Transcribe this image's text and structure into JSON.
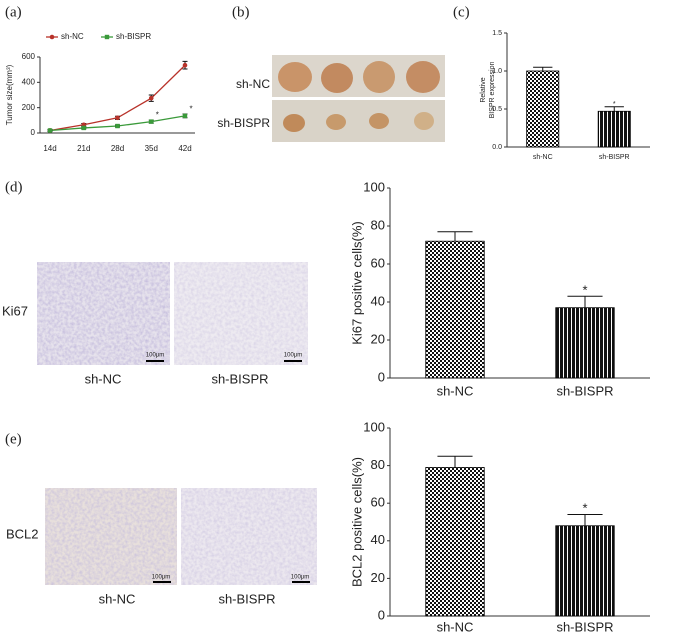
{
  "panel_labels": [
    "(a)",
    "(b)",
    "(c)",
    "(d)",
    "(e)"
  ],
  "photo_b": {
    "rows": [
      "sh-NC",
      "sh-BISPR"
    ]
  },
  "photo_d": {
    "row": "Ki67",
    "columns": [
      "sh-NC",
      "sh-BISPR"
    ],
    "scale_bars": [
      "100μm",
      "100μm"
    ]
  },
  "photo_e": {
    "row": "BCL2",
    "columns": [
      "sh-NC",
      "sh-BISPR"
    ],
    "scale_bars": [
      "100μm",
      "100μm"
    ]
  },
  "chart_data": [
    {
      "type": "line",
      "ylabel": "Tumor size(mm³)",
      "categories": [
        "14d",
        "21d",
        "28d",
        "35d",
        "42d"
      ],
      "series": [
        {
          "name": "sh-NC",
          "color": "#b8322a",
          "values": [
            20,
            65,
            120,
            275,
            535
          ],
          "errors": [
            8,
            10,
            12,
            25,
            30
          ]
        },
        {
          "name": "sh-BISPR",
          "color": "#3a9a3a",
          "values": [
            20,
            40,
            55,
            90,
            135
          ],
          "errors": [
            6,
            8,
            8,
            12,
            15
          ],
          "significance": [
            null,
            null,
            null,
            "*",
            "*"
          ]
        }
      ],
      "ylim": [
        0,
        600
      ],
      "yticks": [
        0,
        200,
        400,
        600
      ],
      "legend": "top"
    },
    {
      "type": "bar",
      "ylabel": [
        "Relative",
        "BISPR expression"
      ],
      "categories": [
        "sh-NC",
        "sh-BISPR"
      ],
      "series": [
        {
          "color": "#000000",
          "values": [
            1.0,
            0.47
          ],
          "errors": [
            0.05,
            0.06
          ],
          "significance": [
            null,
            "*"
          ]
        }
      ],
      "ylim": [
        0,
        1.5
      ],
      "yticks": [
        {
          "value": 0,
          "label": "0.0"
        },
        0.5,
        {
          "value": 1,
          "label": "1.0"
        },
        1.5
      ]
    },
    {
      "type": "bar",
      "ylabel": "Ki67 positive  cells(%)",
      "categories": [
        "sh-NC",
        "sh-BISPR"
      ],
      "series": [
        {
          "color": "#000000",
          "values": [
            72,
            37
          ],
          "errors": [
            5,
            6
          ],
          "significance": [
            null,
            "*"
          ]
        }
      ],
      "ylim": [
        0,
        100
      ],
      "yticks": [
        0,
        20,
        40,
        60,
        80,
        100
      ]
    },
    {
      "type": "bar",
      "ylabel": "BCL2 positive cells(%)",
      "categories": [
        "sh-NC",
        "sh-BISPR"
      ],
      "series": [
        {
          "color": "#000000",
          "values": [
            79,
            48
          ],
          "errors": [
            6,
            6
          ],
          "significance": [
            null,
            "*"
          ]
        }
      ],
      "ylim": [
        0,
        100
      ],
      "yticks": [
        0,
        20,
        40,
        60,
        80,
        100
      ]
    }
  ]
}
